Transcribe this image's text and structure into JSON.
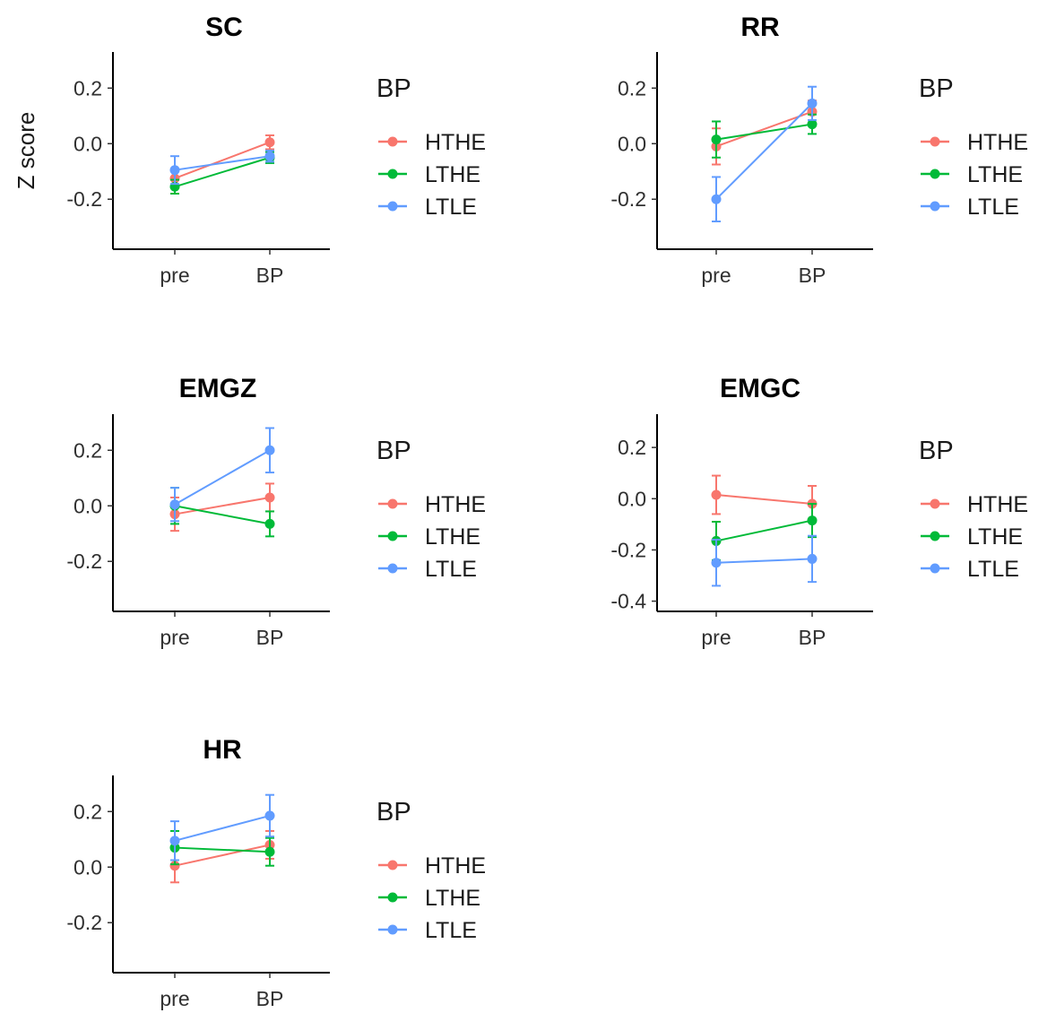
{
  "chart_data": [
    {
      "type": "line",
      "title": "SC",
      "xlabel": "",
      "ylabel": "Z score",
      "categories": [
        "pre",
        "BP"
      ],
      "yticks": [
        -0.2,
        0.0,
        0.2
      ],
      "ytick_labels": [
        "-0.2",
        "0.0",
        "0.2"
      ],
      "ylim": [
        -0.38,
        0.33
      ],
      "legend": {
        "title": "BP",
        "position": "right"
      },
      "series": [
        {
          "name": "HTHE",
          "color": "#F8766D",
          "values": [
            -0.125,
            0.005
          ],
          "errors": [
            0.025,
            0.025
          ]
        },
        {
          "name": "LTHE",
          "color": "#00BA38",
          "values": [
            -0.155,
            -0.05
          ],
          "errors": [
            0.025,
            0.02
          ]
        },
        {
          "name": "LTLE",
          "color": "#619CFF",
          "values": [
            -0.095,
            -0.045
          ],
          "errors": [
            0.05,
            0.02
          ]
        }
      ]
    },
    {
      "type": "line",
      "title": "RR",
      "xlabel": "",
      "ylabel": "",
      "categories": [
        "pre",
        "BP"
      ],
      "yticks": [
        -0.2,
        0.0,
        0.2
      ],
      "ytick_labels": [
        "-0.2",
        "0.0",
        "0.2"
      ],
      "ylim": [
        -0.38,
        0.33
      ],
      "legend": {
        "title": "BP",
        "position": "right"
      },
      "series": [
        {
          "name": "HTHE",
          "color": "#F8766D",
          "values": [
            -0.01,
            0.115
          ],
          "errors": [
            0.065,
            0.04
          ]
        },
        {
          "name": "LTHE",
          "color": "#00BA38",
          "values": [
            0.015,
            0.07
          ],
          "errors": [
            0.065,
            0.035
          ]
        },
        {
          "name": "LTLE",
          "color": "#619CFF",
          "values": [
            -0.2,
            0.145
          ],
          "errors": [
            0.08,
            0.06
          ]
        }
      ]
    },
    {
      "type": "line",
      "title": "EMGZ",
      "xlabel": "",
      "ylabel": "",
      "categories": [
        "pre",
        "BP"
      ],
      "yticks": [
        -0.2,
        0.0,
        0.2
      ],
      "ytick_labels": [
        "-0.2",
        "0.0",
        "0.2"
      ],
      "ylim": [
        -0.38,
        0.33
      ],
      "legend": {
        "title": "BP",
        "position": "right"
      },
      "series": [
        {
          "name": "HTHE",
          "color": "#F8766D",
          "values": [
            -0.03,
            0.03
          ],
          "errors": [
            0.06,
            0.05
          ]
        },
        {
          "name": "LTHE",
          "color": "#00BA38",
          "values": [
            0.0,
            -0.065
          ],
          "errors": [
            0.065,
            0.045
          ]
        },
        {
          "name": "LTLE",
          "color": "#619CFF",
          "values": [
            0.005,
            0.2
          ],
          "errors": [
            0.06,
            0.08
          ]
        }
      ]
    },
    {
      "type": "line",
      "title": "EMGC",
      "xlabel": "",
      "ylabel": "",
      "categories": [
        "pre",
        "BP"
      ],
      "yticks": [
        -0.4,
        -0.2,
        0.0,
        0.2
      ],
      "ytick_labels": [
        "-0.4",
        "-0.2",
        "0.0",
        "0.2"
      ],
      "ylim": [
        -0.44,
        0.33
      ],
      "legend": {
        "title": "BP",
        "position": "right"
      },
      "series": [
        {
          "name": "HTHE",
          "color": "#F8766D",
          "values": [
            0.015,
            -0.02
          ],
          "errors": [
            0.075,
            0.07
          ]
        },
        {
          "name": "LTHE",
          "color": "#00BA38",
          "values": [
            -0.165,
            -0.085
          ],
          "errors": [
            0.075,
            0.065
          ]
        },
        {
          "name": "LTLE",
          "color": "#619CFF",
          "values": [
            -0.25,
            -0.235
          ],
          "errors": [
            0.09,
            0.09
          ]
        }
      ]
    },
    {
      "type": "line",
      "title": "HR",
      "xlabel": "",
      "ylabel": "",
      "categories": [
        "pre",
        "BP"
      ],
      "yticks": [
        -0.2,
        0.0,
        0.2
      ],
      "ytick_labels": [
        "-0.2",
        "0.0",
        "0.2"
      ],
      "ylim": [
        -0.38,
        0.33
      ],
      "legend": {
        "title": "BP",
        "position": "right"
      },
      "series": [
        {
          "name": "HTHE",
          "color": "#F8766D",
          "values": [
            0.005,
            0.08
          ],
          "errors": [
            0.06,
            0.05
          ]
        },
        {
          "name": "LTHE",
          "color": "#00BA38",
          "values": [
            0.07,
            0.055
          ],
          "errors": [
            0.06,
            0.05
          ]
        },
        {
          "name": "LTLE",
          "color": "#619CFF",
          "values": [
            0.095,
            0.185
          ],
          "errors": [
            0.07,
            0.075
          ]
        }
      ]
    }
  ]
}
